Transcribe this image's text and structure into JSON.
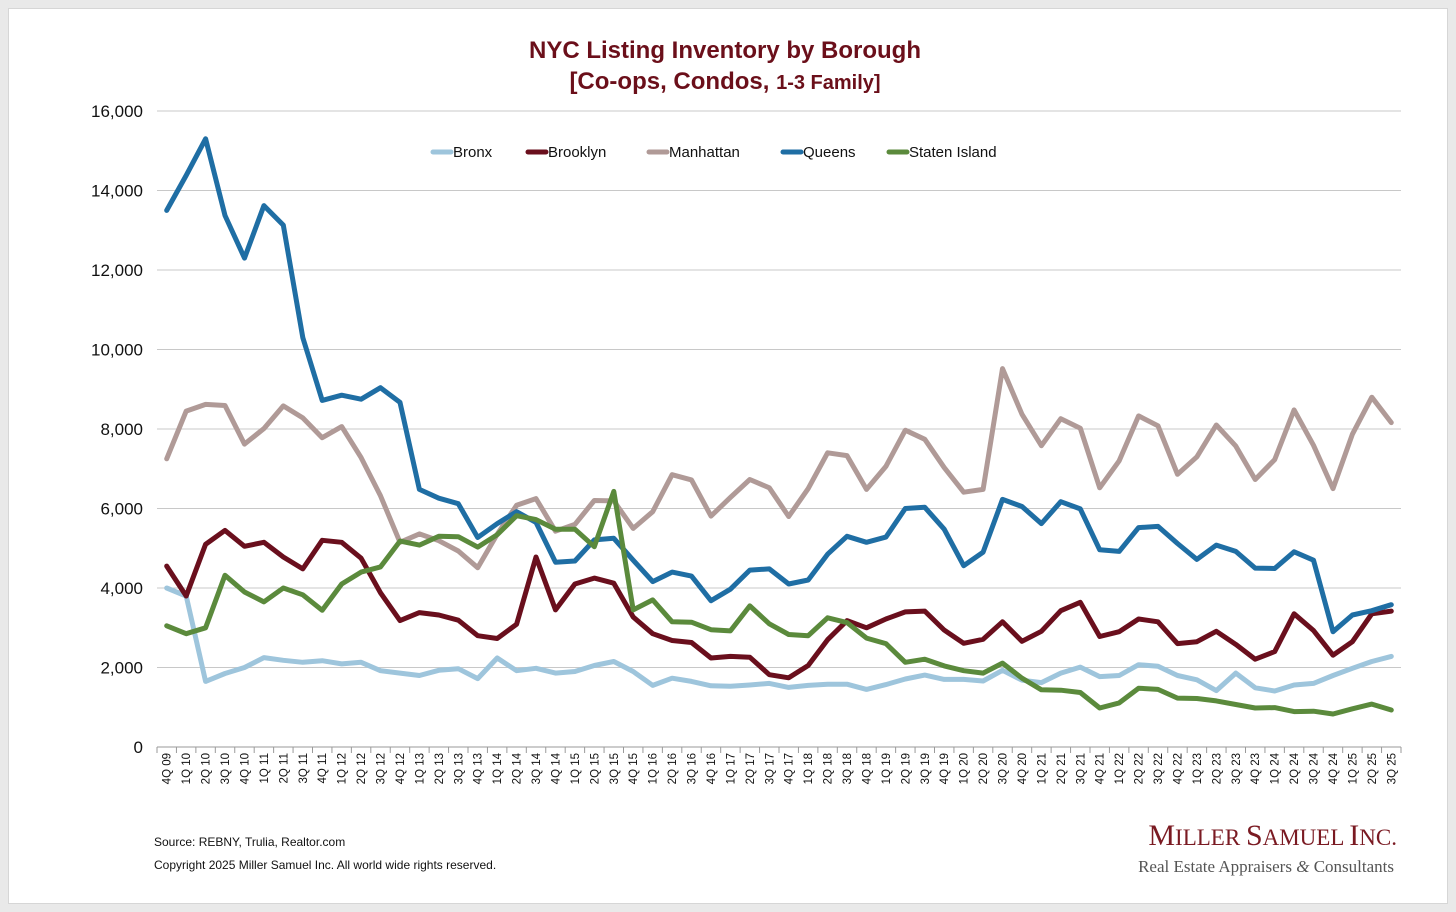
{
  "colors": {
    "title": "#6b0f1a",
    "bronx": "#9ec5dc",
    "brooklyn": "#6a0f1d",
    "manhattan": "#b09a97",
    "queens": "#1f6ea4",
    "staten_island": "#5b8a3c",
    "grid": "#c8c8c8",
    "logo": "#7a1a22"
  },
  "chart_data": {
    "type": "line",
    "title": "NYC Listing Inventory by Borough",
    "subtitle_prefix": "[Co-ops, Condos, ",
    "subtitle_suffix": "1-3 Family]",
    "xlabel": "",
    "ylabel": "",
    "ylim": [
      0,
      16000
    ],
    "yticks": [
      0,
      2000,
      4000,
      6000,
      8000,
      10000,
      12000,
      14000,
      16000
    ],
    "ytick_labels": [
      "0",
      "2,000",
      "4,000",
      "6,000",
      "8,000",
      "10,000",
      "12,000",
      "14,000",
      "16,000"
    ],
    "grid": true,
    "legend_position": "top-center",
    "categories": [
      "4Q 09",
      "1Q 10",
      "2Q 10",
      "3Q 10",
      "4Q 10",
      "1Q 11",
      "2Q 11",
      "3Q 11",
      "4Q 11",
      "1Q 12",
      "2Q 12",
      "3Q 12",
      "4Q 12",
      "1Q 13",
      "2Q 13",
      "3Q 13",
      "4Q 13",
      "1Q 14",
      "2Q 14",
      "3Q 14",
      "4Q 14",
      "1Q 15",
      "2Q 15",
      "3Q 15",
      "4Q 15",
      "1Q 16",
      "2Q 16",
      "3Q 16",
      "4Q 16",
      "1Q 17",
      "2Q 17",
      "3Q 17",
      "4Q 17",
      "1Q 18",
      "2Q 18",
      "3Q 18",
      "4Q 18",
      "1Q 19",
      "2Q 19",
      "3Q 19",
      "4Q 19",
      "1Q 20",
      "2Q 20",
      "3Q 20",
      "4Q 20",
      "1Q 21",
      "2Q 21",
      "3Q 21",
      "4Q 21",
      "1Q 22",
      "2Q 22",
      "3Q 22",
      "4Q 22",
      "1Q 23",
      "2Q 23",
      "3Q 23",
      "4Q 23",
      "1Q 24",
      "2Q 24",
      "3Q 24",
      "4Q 24",
      "1Q 25",
      "2Q 25",
      "3Q 25"
    ],
    "series": [
      {
        "name": "Bronx",
        "key": "bronx",
        "values": [
          4000,
          3800,
          1650,
          1850,
          2000,
          2250,
          2180,
          2130,
          2170,
          2090,
          2130,
          1920,
          1860,
          1800,
          1930,
          1970,
          1720,
          2240,
          1920,
          1980,
          1860,
          1900,
          2050,
          2150,
          1900,
          1550,
          1730,
          1650,
          1540,
          1530,
          1560,
          1600,
          1500,
          1550,
          1580,
          1580,
          1450,
          1570,
          1710,
          1810,
          1700,
          1700,
          1660,
          1930,
          1680,
          1620,
          1860,
          2010,
          1770,
          1800,
          2070,
          2030,
          1800,
          1690,
          1420,
          1860,
          1490,
          1410,
          1560,
          1600,
          1800,
          1980,
          2150,
          2280
        ]
      },
      {
        "name": "Brooklyn",
        "key": "brooklyn",
        "values": [
          4550,
          3800,
          5100,
          5450,
          5050,
          5150,
          4780,
          4480,
          5200,
          5150,
          4750,
          3880,
          3180,
          3380,
          3320,
          3190,
          2800,
          2730,
          3090,
          4780,
          3450,
          4100,
          4250,
          4120,
          3270,
          2850,
          2680,
          2630,
          2240,
          2280,
          2260,
          1820,
          1740,
          2050,
          2700,
          3180,
          3000,
          3220,
          3400,
          3420,
          2940,
          2610,
          2710,
          3150,
          2660,
          2910,
          3430,
          3640,
          2780,
          2900,
          3220,
          3150,
          2600,
          2650,
          2910,
          2580,
          2210,
          2400,
          3350,
          2930,
          2310,
          2650,
          3350,
          3420
        ]
      },
      {
        "name": "Manhattan",
        "key": "manhattan",
        "values": [
          7250,
          8450,
          8620,
          8590,
          7620,
          8010,
          8580,
          8280,
          7780,
          8060,
          7280,
          6320,
          5150,
          5360,
          5190,
          4930,
          4510,
          5350,
          6080,
          6250,
          5430,
          5600,
          6200,
          6190,
          5500,
          5920,
          6850,
          6720,
          5810,
          6280,
          6730,
          6520,
          5800,
          6500,
          7400,
          7330,
          6480,
          7060,
          7970,
          7740,
          7030,
          6410,
          6480,
          9520,
          8370,
          7580,
          8260,
          8020,
          6520,
          7200,
          8330,
          8080,
          6860,
          7300,
          8100,
          7570,
          6730,
          7230,
          8480,
          7590,
          6500,
          7870,
          8800,
          8160
        ]
      },
      {
        "name": "Queens",
        "key": "queens",
        "values": [
          13500,
          14380,
          15300,
          13370,
          12300,
          13620,
          13130,
          10300,
          8720,
          8850,
          8750,
          9040,
          8670,
          6480,
          6260,
          6120,
          5270,
          5620,
          5920,
          5650,
          4650,
          4680,
          5210,
          5250,
          4700,
          4160,
          4400,
          4300,
          3680,
          3970,
          4450,
          4480,
          4100,
          4200,
          4850,
          5300,
          5150,
          5280,
          6000,
          6030,
          5480,
          4560,
          4900,
          6230,
          6050,
          5620,
          6170,
          5990,
          4960,
          4920,
          5520,
          5550,
          5120,
          4720,
          5080,
          4920,
          4500,
          4490,
          4910,
          4700,
          2900,
          3320,
          3430,
          3580
        ]
      },
      {
        "name": "Staten Island",
        "key": "staten_island",
        "values": [
          3050,
          2850,
          3000,
          4320,
          3900,
          3650,
          4000,
          3830,
          3440,
          4100,
          4400,
          4530,
          5180,
          5080,
          5300,
          5290,
          5030,
          5340,
          5820,
          5720,
          5480,
          5480,
          5040,
          6430,
          3450,
          3700,
          3150,
          3140,
          2950,
          2920,
          3550,
          3100,
          2830,
          2800,
          3250,
          3130,
          2740,
          2600,
          2130,
          2210,
          2040,
          1920,
          1860,
          2110,
          1730,
          1440,
          1430,
          1370,
          980,
          1110,
          1480,
          1450,
          1230,
          1220,
          1160,
          1070,
          980,
          990,
          890,
          900,
          830,
          960,
          1080,
          930
        ]
      }
    ]
  },
  "footer": {
    "source": "Source: REBNY, Trulia, Realtor.com",
    "copyright": "Copyright 2025 Miller Samuel Inc.  All world wide rights reserved."
  },
  "logo": {
    "name_big_m": "M",
    "name_rest_m": "ILLER ",
    "name_big_s": "S",
    "name_rest_s": "AMUEL ",
    "name_big_i": "I",
    "name_rest_i": "NC.",
    "tagline_pre": "Real Estate Appraisers ",
    "tagline_amp": "&",
    "tagline_post": " Consultants"
  }
}
